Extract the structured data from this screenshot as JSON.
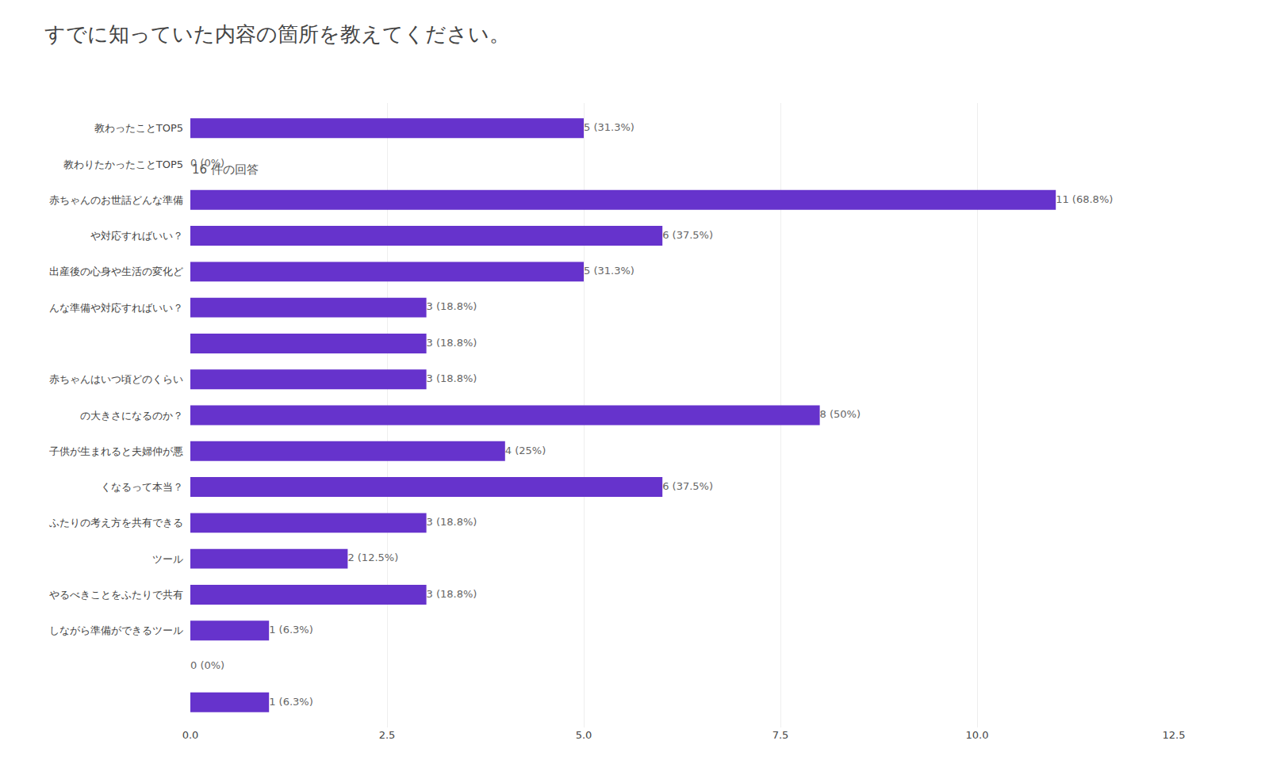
{
  "chart_data": {
    "type": "bar",
    "orientation": "horizontal",
    "title": "すでに知っていた内容の箇所を教えてください。",
    "subtitle": "16 件の回答",
    "color": "#6633CC",
    "categories": [
      "教わったことTOP5",
      "教わりたかったことTOP5",
      "赤ちゃんのお世話どんな準備",
      "や対応すればいい？",
      "出産後の心身や生活の変化ど",
      "んな準備や対応すればいい？",
      null,
      "赤ちゃんはいつ頃どのくらい",
      "の大きさになるのか？",
      "子供が生まれると夫婦仲が悪",
      "くなるって本当？",
      "ふたりの考え方を共有できる",
      "ツール",
      "やるべきことをふたりで共有",
      "しながら準備ができるツール",
      null,
      null
    ],
    "values": [
      5,
      0,
      11,
      6,
      5,
      3,
      3,
      3,
      8,
      4,
      6,
      3,
      2,
      3,
      1,
      0,
      1
    ],
    "value_labels": [
      "5 (31.3%)",
      "0 (0%)",
      "11 (68.8%)",
      "6 (37.5%)",
      "5 (31.3%)",
      "3 (18.8%)",
      "3 (18.8%)",
      "3 (18.8%)",
      "8 (50%)",
      "4 (25%)",
      "6 (37.5%)",
      "3 (18.8%)",
      "2 (12.5%)",
      "3 (18.8%)",
      "1 (6.3%)",
      "0 (0%)",
      "1 (6.3%)"
    ],
    "data_labels": true,
    "xlim": [
      0,
      12.5
    ],
    "xticks": [
      {
        "value": 0,
        "label": "0.0"
      },
      2.5,
      {
        "value": 5,
        "label": "5.0"
      },
      7.5,
      {
        "value": 10,
        "label": "10.0"
      },
      12.5
    ],
    "grid": true
  }
}
